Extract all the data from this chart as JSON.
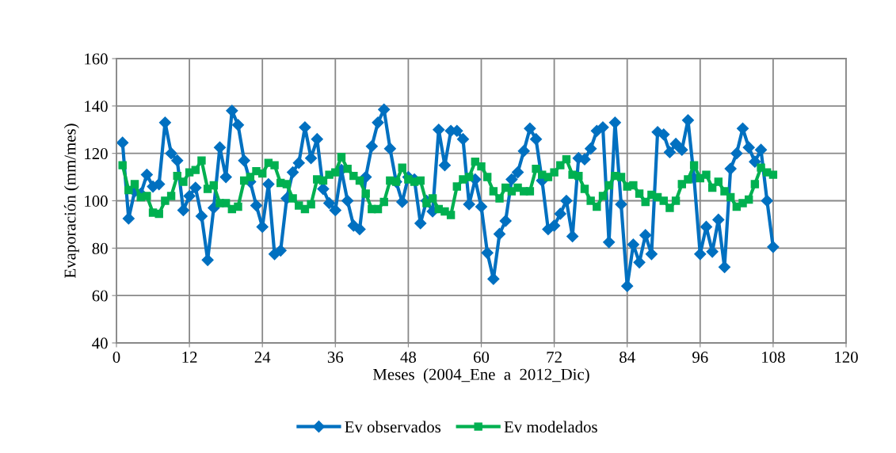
{
  "chart_data": {
    "type": "line",
    "xlabel": "Meses  (2004_Ene  a  2012_Dic)",
    "ylabel": "Evaporación (mm/mes)",
    "x": [
      1,
      2,
      3,
      4,
      5,
      6,
      7,
      8,
      9,
      10,
      11,
      12,
      13,
      14,
      15,
      16,
      17,
      18,
      19,
      20,
      21,
      22,
      23,
      24,
      25,
      26,
      27,
      28,
      29,
      30,
      31,
      32,
      33,
      34,
      35,
      36,
      37,
      38,
      39,
      40,
      41,
      42,
      43,
      44,
      45,
      46,
      47,
      48,
      49,
      50,
      51,
      52,
      53,
      54,
      55,
      56,
      57,
      58,
      59,
      60,
      61,
      62,
      63,
      64,
      65,
      66,
      67,
      68,
      69,
      70,
      71,
      72,
      73,
      74,
      75,
      76,
      77,
      78,
      79,
      80,
      81,
      82,
      83,
      84,
      85,
      86,
      87,
      88,
      89,
      90,
      91,
      92,
      93,
      94,
      95,
      96,
      97,
      98,
      99,
      100,
      101,
      102,
      103,
      104,
      105,
      106,
      107,
      108
    ],
    "series": [
      {
        "name": "Ev observados",
        "color": "#0070c0",
        "marker": "diamond",
        "values": [
          124.5,
          92.5,
          104,
          103,
          111,
          106,
          107,
          133,
          120,
          117,
          96,
          102,
          105.5,
          93.5,
          75,
          97,
          122.5,
          110,
          138,
          132,
          117,
          108,
          98,
          89,
          107,
          77.5,
          79,
          101,
          112,
          116,
          131,
          118,
          126,
          105,
          99,
          96,
          113,
          100,
          89.5,
          88,
          110,
          123,
          133,
          138.5,
          122,
          108,
          99.5,
          110,
          109,
          90.5,
          100,
          95.5,
          130,
          115,
          129.5,
          129.5,
          126,
          98.5,
          109,
          97.5,
          78,
          67,
          86,
          91.5,
          109,
          112,
          121,
          130.5,
          126,
          108.5,
          88,
          89.5,
          94.5,
          100,
          85,
          118,
          117.5,
          122,
          129.5,
          131,
          82.5,
          133,
          98.5,
          64,
          81.5,
          74,
          85.5,
          77.5,
          129,
          128,
          120.5,
          124,
          121.5,
          134,
          109.5,
          77.5,
          89,
          78.5,
          92,
          72,
          113.5,
          120,
          130.5,
          122.5,
          116.5,
          121.5,
          100,
          80.5
        ]
      },
      {
        "name": "Ev modelados",
        "color": "#00b050",
        "marker": "square",
        "values": [
          115,
          104.5,
          107,
          101.5,
          102,
          95,
          94.5,
          100,
          102,
          110.5,
          108,
          112,
          113,
          117,
          105,
          106.5,
          99,
          99,
          96.5,
          97.5,
          108.5,
          110,
          112.5,
          111.5,
          116,
          115,
          107.5,
          107,
          101,
          98,
          96.5,
          98.5,
          109,
          108.5,
          111,
          112,
          118.5,
          113.5,
          110.5,
          108.5,
          103,
          96.5,
          96.5,
          99.5,
          108.5,
          108,
          114,
          109,
          108,
          108.5,
          99,
          101,
          96.5,
          95.5,
          94,
          106,
          109,
          110,
          116.5,
          114.5,
          110,
          104,
          101,
          105.5,
          104,
          105.5,
          104,
          104,
          113.5,
          111,
          110,
          112,
          115,
          117.5,
          111,
          110.5,
          105,
          100,
          97.5,
          102,
          106.5,
          110.5,
          110,
          106,
          106.5,
          103,
          99.5,
          102.5,
          101.5,
          100,
          97,
          100,
          107,
          109,
          115,
          109.5,
          111,
          105.5,
          108,
          104,
          101.5,
          97.5,
          99,
          100.5,
          107,
          114,
          112,
          111
        ]
      }
    ],
    "xlim": [
      0,
      120
    ],
    "xticks": [
      0,
      12,
      24,
      36,
      48,
      60,
      72,
      84,
      96,
      108,
      120
    ],
    "ylim": [
      40,
      160
    ],
    "yticks": [
      40,
      60,
      80,
      100,
      120,
      140,
      160
    ],
    "grid": true,
    "legend": "bottom",
    "line_style": "solid"
  }
}
